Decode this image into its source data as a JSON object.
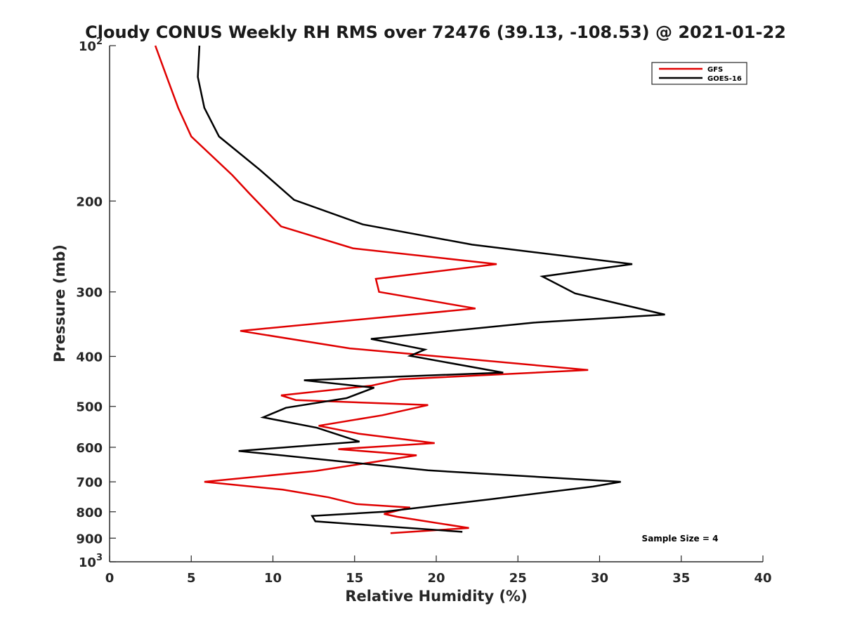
{
  "chart_data": {
    "type": "line",
    "title": "Cloudy CONUS Weekly RH RMS over 72476 (39.13, -108.53) @ 2021-01-22",
    "xlabel": "Relative Humidity (%)",
    "ylabel": "Pressure (mb)",
    "xlim": [
      0,
      40
    ],
    "ylim": [
      1000,
      100
    ],
    "yscale": "log",
    "y_reversed": true,
    "grid": false,
    "legend_position": "top-right",
    "x_ticks": [
      0,
      5,
      10,
      15,
      20,
      25,
      30,
      35,
      40
    ],
    "y_ticks": [
      {
        "value": 100,
        "base": "10",
        "exp": "2"
      },
      {
        "value": 200,
        "label": "200"
      },
      {
        "value": 300,
        "label": "300"
      },
      {
        "value": 400,
        "label": "400"
      },
      {
        "value": 500,
        "label": "500"
      },
      {
        "value": 600,
        "label": "600"
      },
      {
        "value": 700,
        "label": "700"
      },
      {
        "value": 800,
        "label": "800"
      },
      {
        "value": 900,
        "label": "900"
      },
      {
        "value": 1000,
        "base": "10",
        "exp": "3"
      }
    ],
    "series": [
      {
        "name": "GFS",
        "color": "#e00000",
        "points": [
          [
            2.8,
            100
          ],
          [
            3.5,
            115
          ],
          [
            4.2,
            132
          ],
          [
            5.0,
            150
          ],
          [
            7.5,
            178
          ],
          [
            8.6,
            194
          ],
          [
            10.5,
            224
          ],
          [
            14.9,
            247
          ],
          [
            23.7,
            265
          ],
          [
            16.3,
            283
          ],
          [
            16.5,
            300
          ],
          [
            22.4,
            323
          ],
          [
            8.0,
            357
          ],
          [
            14.7,
            386
          ],
          [
            29.3,
            425
          ],
          [
            17.8,
            443
          ],
          [
            16.0,
            456
          ],
          [
            10.5,
            476
          ],
          [
            11.4,
            486
          ],
          [
            19.5,
            497
          ],
          [
            16.7,
            520
          ],
          [
            12.8,
            545
          ],
          [
            15.3,
            565
          ],
          [
            19.9,
            589
          ],
          [
            14.0,
            605
          ],
          [
            18.8,
            622
          ],
          [
            16.3,
            640
          ],
          [
            12.6,
            667
          ],
          [
            5.8,
            700
          ],
          [
            10.6,
            725
          ],
          [
            13.4,
            750
          ],
          [
            15.1,
            773
          ],
          [
            18.4,
            785
          ],
          [
            16.8,
            808
          ],
          [
            17.6,
            818
          ],
          [
            22.0,
            860
          ],
          [
            17.2,
            880
          ]
        ]
      },
      {
        "name": "GOES-16",
        "color": "#000000",
        "points": [
          [
            5.5,
            100
          ],
          [
            5.4,
            115
          ],
          [
            5.8,
            132
          ],
          [
            6.7,
            150
          ],
          [
            9.2,
            174
          ],
          [
            11.3,
            199
          ],
          [
            15.5,
            222
          ],
          [
            22.2,
            243
          ],
          [
            32.0,
            265
          ],
          [
            26.5,
            280
          ],
          [
            28.5,
            302
          ],
          [
            34.0,
            332
          ],
          [
            26.0,
            344
          ],
          [
            16.0,
            370
          ],
          [
            19.3,
            388
          ],
          [
            18.4,
            399
          ],
          [
            24.1,
            430
          ],
          [
            11.9,
            445
          ],
          [
            16.2,
            460
          ],
          [
            14.5,
            482
          ],
          [
            10.8,
            503
          ],
          [
            9.4,
            525
          ],
          [
            12.7,
            550
          ],
          [
            15.3,
            585
          ],
          [
            7.9,
            610
          ],
          [
            19.5,
            665
          ],
          [
            31.3,
            700
          ],
          [
            29.6,
            715
          ],
          [
            23.4,
            756
          ],
          [
            16.8,
            800
          ],
          [
            12.4,
            815
          ],
          [
            12.6,
            835
          ],
          [
            21.6,
            875
          ]
        ]
      }
    ],
    "annotation": "Sample Size = 4"
  }
}
